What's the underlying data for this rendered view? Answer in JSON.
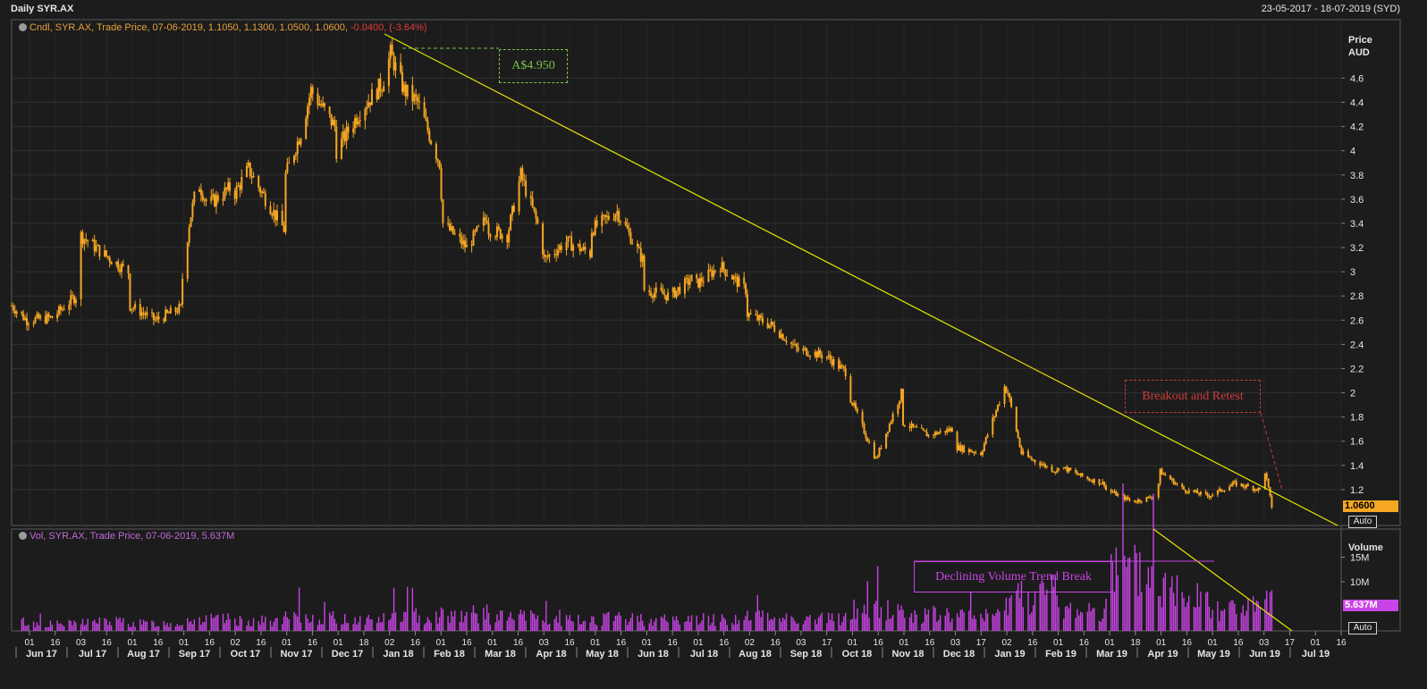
{
  "header": {
    "title": "Daily SYR.AX",
    "date_range": "23-05-2017 - 18-07-2019 (SYD)"
  },
  "legend_price": {
    "label": "Cndl, SYR.AX, Trade Price, 07-06-2019, 1.1050, 1.1300, 1.0500, 1.0600,",
    "change": "-0.0400, (-3.64%)"
  },
  "legend_volume": {
    "label": "Vol, SYR.AX, Trade Price, 07-06-2019, 5.637M"
  },
  "axis": {
    "price_unit_line1": "Price",
    "price_unit_line2": "AUD",
    "volume_unit": "Volume",
    "price_tag": "1.0600",
    "volume_tag": "5.637M",
    "auto_label": "Auto"
  },
  "annotations": {
    "peak": "A$4.950",
    "breakout": "Breakout and Retest",
    "volume": "Declining Volume Trend Break"
  },
  "colors": {
    "background": "#1c1c1c",
    "candle": "#f5a623",
    "volume": "#c944e6",
    "trendline": "#e6e600",
    "grid": "#303030"
  },
  "chart_data": [
    {
      "type": "candlestick",
      "title": "Daily SYR.AX",
      "ylabel": "Price AUD",
      "ylim": [
        1.0,
        4.95
      ],
      "y_ticks": [
        1.2,
        1.4,
        1.6,
        1.8,
        2,
        2.2,
        2.4,
        2.6,
        2.8,
        3,
        3.2,
        3.4,
        3.6,
        3.8,
        4,
        4.2,
        4.4,
        4.6
      ],
      "x_tick_days": [
        "01",
        "16",
        "03",
        "16",
        "01",
        "16",
        "01",
        "16",
        "02",
        "16",
        "01",
        "16",
        "01",
        "18",
        "02",
        "16",
        "01",
        "16",
        "01",
        "16",
        "03",
        "16",
        "01",
        "16",
        "01",
        "16",
        "01",
        "16",
        "02",
        "16",
        "03",
        "17",
        "01",
        "16",
        "01",
        "16",
        "03",
        "17",
        "02",
        "16",
        "01",
        "16",
        "01",
        "18",
        "01",
        "16",
        "01",
        "16",
        "03",
        "17",
        "01",
        "16"
      ],
      "x_tick_months": [
        "Jun 17",
        "Jul 17",
        "Aug 17",
        "Sep 17",
        "Oct 17",
        "Nov 17",
        "Dec 17",
        "Jan 18",
        "Feb 18",
        "Mar 18",
        "Apr 18",
        "May 18",
        "Jun 18",
        "Jul 18",
        "Aug 18",
        "Sep 18",
        "Oct 18",
        "Nov 18",
        "Dec 18",
        "Jan 19",
        "Feb 19",
        "Mar 19",
        "Apr 19",
        "May 19",
        "Jun 19",
        "Jul 19"
      ],
      "series": [
        {
          "name": "SYR.AX",
          "points": [
            [
              "2017-05-23",
              2.72
            ],
            [
              "2017-06-01",
              2.6
            ],
            [
              "2017-06-16",
              2.62
            ],
            [
              "2017-06-30",
              2.8
            ],
            [
              "2017-07-03",
              3.3
            ],
            [
              "2017-07-16",
              3.15
            ],
            [
              "2017-07-31",
              3.0
            ],
            [
              "2017-08-01",
              2.72
            ],
            [
              "2017-08-16",
              2.6
            ],
            [
              "2017-08-31",
              2.7
            ],
            [
              "2017-09-01",
              2.95
            ],
            [
              "2017-09-05",
              3.4
            ],
            [
              "2017-09-10",
              3.75
            ],
            [
              "2017-09-16",
              3.55
            ],
            [
              "2017-09-30",
              3.7
            ],
            [
              "2017-10-02",
              3.65
            ],
            [
              "2017-10-10",
              3.85
            ],
            [
              "2017-10-16",
              3.7
            ],
            [
              "2017-10-31",
              3.35
            ],
            [
              "2017-11-01",
              3.8
            ],
            [
              "2017-11-10",
              4.15
            ],
            [
              "2017-11-16",
              4.5
            ],
            [
              "2017-11-30",
              4.2
            ],
            [
              "2017-12-01",
              4.0
            ],
            [
              "2017-12-16",
              4.35
            ],
            [
              "2017-12-28",
              4.55
            ],
            [
              "2018-01-02",
              4.8
            ],
            [
              "2018-01-10",
              4.5
            ],
            [
              "2018-01-18",
              4.4
            ],
            [
              "2018-01-31",
              3.9
            ],
            [
              "2018-02-02",
              3.4
            ],
            [
              "2018-02-16",
              3.2
            ],
            [
              "2018-02-28",
              3.45
            ],
            [
              "2018-03-01",
              3.35
            ],
            [
              "2018-03-12",
              3.3
            ],
            [
              "2018-03-20",
              3.8
            ],
            [
              "2018-03-31",
              3.35
            ],
            [
              "2018-04-03",
              3.1
            ],
            [
              "2018-04-16",
              3.25
            ],
            [
              "2018-04-30",
              3.15
            ],
            [
              "2018-05-01",
              3.35
            ],
            [
              "2018-05-16",
              3.5
            ],
            [
              "2018-05-31",
              3.1
            ],
            [
              "2018-06-01",
              2.85
            ],
            [
              "2018-06-16",
              2.8
            ],
            [
              "2018-06-30",
              2.95
            ],
            [
              "2018-07-02",
              2.9
            ],
            [
              "2018-07-16",
              3.05
            ],
            [
              "2018-07-31",
              2.85
            ],
            [
              "2018-08-01",
              2.65
            ],
            [
              "2018-08-16",
              2.55
            ],
            [
              "2018-08-31",
              2.35
            ],
            [
              "2018-09-03",
              2.35
            ],
            [
              "2018-09-17",
              2.3
            ],
            [
              "2018-09-30",
              2.15
            ],
            [
              "2018-10-01",
              1.95
            ],
            [
              "2018-10-16",
              1.45
            ],
            [
              "2018-10-31",
              2.0
            ],
            [
              "2018-11-01",
              1.75
            ],
            [
              "2018-11-16",
              1.65
            ],
            [
              "2018-11-30",
              1.7
            ],
            [
              "2018-12-03",
              1.55
            ],
            [
              "2018-12-17",
              1.5
            ],
            [
              "2018-12-31",
              2.05
            ],
            [
              "2019-01-02",
              2.0
            ],
            [
              "2019-01-10",
              1.5
            ],
            [
              "2019-01-16",
              1.45
            ],
            [
              "2019-01-31",
              1.35
            ],
            [
              "2019-02-01",
              1.4
            ],
            [
              "2019-02-16",
              1.3
            ],
            [
              "2019-02-28",
              1.25
            ],
            [
              "2019-03-01",
              1.2
            ],
            [
              "2019-03-17",
              1.1
            ],
            [
              "2019-03-31",
              1.15
            ],
            [
              "2019-04-02",
              1.35
            ],
            [
              "2019-04-16",
              1.2
            ],
            [
              "2019-04-30",
              1.15
            ],
            [
              "2019-05-01",
              1.15
            ],
            [
              "2019-05-16",
              1.25
            ],
            [
              "2019-05-31",
              1.2
            ],
            [
              "2019-06-03",
              1.35
            ],
            [
              "2019-06-07",
              1.06
            ]
          ]
        }
      ],
      "annotations": [
        "A$4.950",
        "Breakout and Retest"
      ]
    },
    {
      "type": "bar",
      "title": "Volume",
      "ylabel": "Volume",
      "y_ticks": [
        "10M",
        "15M"
      ],
      "ylim": [
        0,
        20
      ],
      "series": [
        {
          "name": "Vol",
          "points": [
            [
              "2017-06",
              1.5
            ],
            [
              "2017-07",
              2.0
            ],
            [
              "2017-08",
              1.6
            ],
            [
              "2017-09",
              2.4
            ],
            [
              "2017-10",
              2.1
            ],
            [
              "2017-11",
              2.7
            ],
            [
              "2017-12",
              2.5
            ],
            [
              "2018-01",
              3.2
            ],
            [
              "2018-02",
              3.6
            ],
            [
              "2018-03",
              3.0
            ],
            [
              "2018-04",
              2.2
            ],
            [
              "2018-05",
              2.6
            ],
            [
              "2018-06",
              2.4
            ],
            [
              "2018-07",
              2.5
            ],
            [
              "2018-08",
              2.9
            ],
            [
              "2018-09",
              2.6
            ],
            [
              "2018-10",
              4.5
            ],
            [
              "2018-11",
              3.4
            ],
            [
              "2018-12",
              3.2
            ],
            [
              "2019-01",
              8.0
            ],
            [
              "2019-02",
              4.5
            ],
            [
              "2019-03",
              12.0
            ],
            [
              "2019-04",
              9.0
            ],
            [
              "2019-05",
              5.0
            ],
            [
              "2019-06",
              5.637
            ]
          ]
        }
      ],
      "annotations": [
        "Declining Volume Trend Break"
      ]
    }
  ]
}
